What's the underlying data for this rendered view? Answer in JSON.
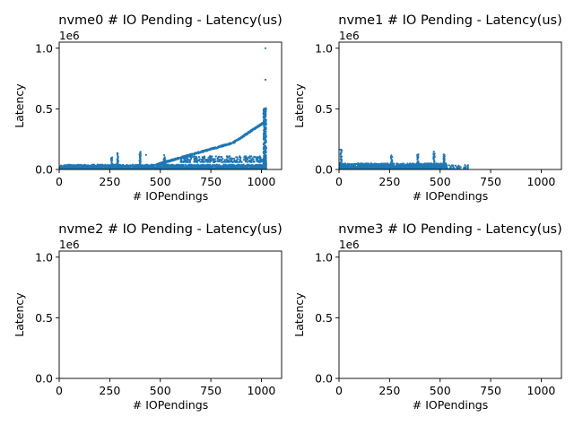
{
  "chart_data": [
    {
      "type": "scatter",
      "title": "nvme0 # IO Pending - Latency(us)",
      "xlabel": "# IOPendings",
      "ylabel": "Latency",
      "offset_label": "1e6",
      "xlim": [
        0,
        1100
      ],
      "ylim": [
        0,
        1.05
      ],
      "xticks": [
        0,
        250,
        500,
        750,
        1000
      ],
      "yticks": [
        0.0,
        0.5,
        1.0
      ],
      "ytick_labels": [
        "0.0",
        "0.5",
        "1.0"
      ],
      "color": "#1f77b4",
      "clusters": [
        {
          "x_range": [
            0,
            1024
          ],
          "y_range": [
            0.0,
            0.04
          ],
          "count": 2000
        },
        {
          "x_range": [
            480,
            860
          ],
          "y_range": [
            0.04,
            0.22
          ],
          "count": 380,
          "trend": "linear"
        },
        {
          "x_range": [
            860,
            1024
          ],
          "y_range": [
            0.22,
            0.4
          ],
          "count": 220,
          "trend": "linear"
        },
        {
          "x_range": [
            600,
            1024
          ],
          "y_range": [
            0.06,
            0.11
          ],
          "count": 300
        },
        {
          "x_range": [
            1010,
            1024
          ],
          "y_range": [
            0.0,
            0.51
          ],
          "count": 260
        }
      ],
      "spikes": [
        {
          "x": 260,
          "y_max": 0.1
        },
        {
          "x": 400,
          "y_max": 0.15
        },
        {
          "x": 520,
          "y_max": 0.12
        },
        {
          "x": 290,
          "y_max": 0.14
        }
      ],
      "points": [
        {
          "x": 1020,
          "y": 1.0
        },
        {
          "x": 1020,
          "y": 0.74
        },
        {
          "x": 430,
          "y": 0.12
        }
      ]
    },
    {
      "type": "scatter",
      "title": "nvme1 # IO Pending - Latency(us)",
      "xlabel": "# IOPendings",
      "ylabel": "Latency",
      "offset_label": "1e6",
      "xlim": [
        0,
        1100
      ],
      "ylim": [
        0,
        1.05
      ],
      "xticks": [
        0,
        250,
        500,
        750,
        1000
      ],
      "yticks": [
        0.0,
        0.5,
        1.0
      ],
      "ytick_labels": [
        "0.0",
        "0.5",
        "1.0"
      ],
      "color": "#1f77b4",
      "clusters": [
        {
          "x_range": [
            0,
            530
          ],
          "y_range": [
            0.0,
            0.05
          ],
          "count": 1400
        },
        {
          "x_range": [
            530,
            640
          ],
          "y_range": [
            0.0,
            0.04
          ],
          "count": 60
        }
      ],
      "spikes": [
        {
          "x": 10,
          "y_max": 0.18
        },
        {
          "x": 260,
          "y_max": 0.12
        },
        {
          "x": 390,
          "y_max": 0.14
        },
        {
          "x": 520,
          "y_max": 0.13
        },
        {
          "x": 470,
          "y_max": 0.15
        }
      ],
      "points": []
    },
    {
      "type": "scatter",
      "title": "nvme2 # IO Pending - Latency(us)",
      "xlabel": "# IOPendings",
      "ylabel": "Latency",
      "offset_label": "1e6",
      "xlim": [
        0,
        1100
      ],
      "ylim": [
        0,
        1.05
      ],
      "xticks": [
        0,
        250,
        500,
        750,
        1000
      ],
      "yticks": [
        0.0,
        0.5,
        1.0
      ],
      "ytick_labels": [
        "0.0",
        "0.5",
        "1.0"
      ],
      "color": "#1f77b4",
      "clusters": [],
      "spikes": [],
      "points": []
    },
    {
      "type": "scatter",
      "title": "nvme3 # IO Pending - Latency(us)",
      "xlabel": "# IOPendings",
      "ylabel": "Latency",
      "offset_label": "1e6",
      "xlim": [
        0,
        1100
      ],
      "ylim": [
        0,
        1.05
      ],
      "xticks": [
        0,
        250,
        500,
        750,
        1000
      ],
      "yticks": [
        0.0,
        0.5,
        1.0
      ],
      "ytick_labels": [
        "0.0",
        "0.5",
        "1.0"
      ],
      "color": "#1f77b4",
      "clusters": [],
      "spikes": [],
      "points": []
    }
  ]
}
